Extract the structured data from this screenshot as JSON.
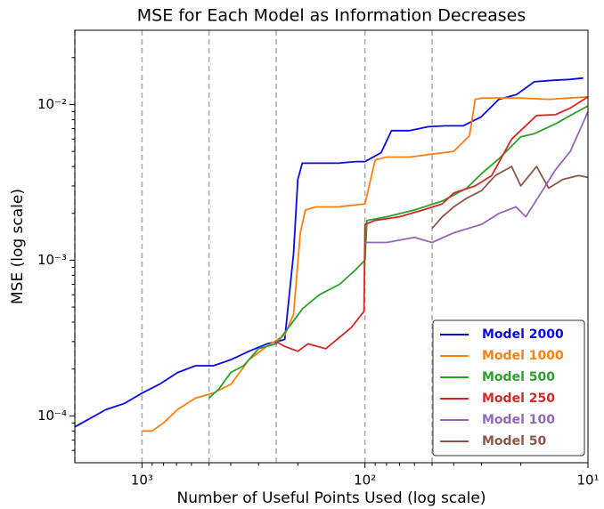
{
  "chart_data": {
    "type": "line",
    "title": "MSE for Each Model as Information Decreases",
    "xlabel": "Number of Useful Points Used (log scale)",
    "ylabel": "MSE (log scale)",
    "xscale": "log",
    "yscale": "log",
    "xlim": [
      2000,
      10
    ],
    "ylim": [
      5e-05,
      0.03
    ],
    "xticks": [
      {
        "value": 1000,
        "label": "10³"
      },
      {
        "value": 100,
        "label": "10²"
      },
      {
        "value": 10,
        "label": "10¹"
      }
    ],
    "yticks": [
      {
        "value": 0.0001,
        "label": "10⁻⁴"
      },
      {
        "value": 0.001,
        "label": "10⁻³"
      },
      {
        "value": 0.01,
        "label": "10⁻²"
      }
    ],
    "vlines": [
      2000,
      1000,
      500,
      250,
      100,
      50
    ],
    "legend": "lower right",
    "series": [
      {
        "name": "Model 2000",
        "color": "#0a0ae6",
        "x": [
          2000,
          1738,
          1445,
          1202,
          1000,
          832,
          692,
          575,
          479,
          398,
          331,
          275,
          247,
          229,
          209,
          200,
          191,
          174,
          158,
          132,
          110,
          100,
          84.7,
          76,
          63,
          52,
          43.7,
          36.3,
          30.2,
          25.1,
          20.9,
          17.4,
          14.5,
          12,
          10.5
        ],
        "values": [
          8.5e-05,
          9.5e-05,
          0.00011,
          0.00012,
          0.00014,
          0.00016,
          0.00019,
          0.00021,
          0.00021,
          0.00023,
          0.00026,
          0.00029,
          0.0003,
          0.00031,
          0.0011,
          0.0033,
          0.0042,
          0.0042,
          0.0042,
          0.0042,
          0.0043,
          0.0043,
          0.0049,
          0.0068,
          0.0068,
          0.0072,
          0.0073,
          0.0073,
          0.0083,
          0.0108,
          0.0116,
          0.014,
          0.0143,
          0.0145,
          0.0148
        ]
      },
      {
        "name": "Model 1000",
        "color": "#ff7f0e",
        "x": [
          1000,
          900,
          800,
          692,
          575,
          479,
          398,
          331,
          275,
          229,
          209,
          195,
          185,
          166,
          132,
          100,
          90,
          80,
          63,
          50,
          40,
          34,
          32,
          30,
          25,
          20,
          15,
          10
        ],
        "values": [
          8e-05,
          8e-05,
          9e-05,
          0.00011,
          0.00013,
          0.00014,
          0.00016,
          0.00023,
          0.00028,
          0.00033,
          0.00045,
          0.0015,
          0.0021,
          0.0022,
          0.0022,
          0.0023,
          0.0044,
          0.0046,
          0.0046,
          0.0048,
          0.005,
          0.0063,
          0.0108,
          0.011,
          0.011,
          0.011,
          0.0108,
          0.0112
        ]
      },
      {
        "name": "Model 500",
        "color": "#2ca02c",
        "x": [
          500,
          450,
          400,
          350,
          300,
          250,
          220,
          190,
          160,
          130,
          110,
          100,
          98,
          80,
          60,
          45,
          35,
          30,
          25,
          20,
          17.4,
          14,
          12,
          10
        ],
        "values": [
          0.00013,
          0.00015,
          0.00019,
          0.00021,
          0.00027,
          0.00029,
          0.00037,
          0.00049,
          0.0006,
          0.0007,
          0.00087,
          0.001,
          0.0018,
          0.0019,
          0.0021,
          0.0024,
          0.0029,
          0.0036,
          0.0045,
          0.0062,
          0.0065,
          0.0075,
          0.0085,
          0.0098
        ]
      },
      {
        "name": "Model 250",
        "color": "#d62728",
        "x": [
          250,
          230,
          200,
          180,
          150,
          130,
          115,
          101,
          100,
          90,
          70,
          55,
          45,
          40,
          32,
          27,
          22,
          17,
          14,
          12,
          10
        ],
        "values": [
          0.0003,
          0.00028,
          0.00026,
          0.00029,
          0.00027,
          0.00032,
          0.00037,
          0.00047,
          0.0017,
          0.0018,
          0.0019,
          0.0021,
          0.0023,
          0.0027,
          0.003,
          0.0035,
          0.006,
          0.0085,
          0.0086,
          0.0095,
          0.0112
        ]
      },
      {
        "name": "Model 100",
        "color": "#9467bd",
        "x": [
          100,
          80,
          60,
          50,
          40,
          30,
          25,
          21,
          19,
          16,
          14,
          12,
          10
        ],
        "values": [
          0.0013,
          0.0013,
          0.0014,
          0.0013,
          0.0015,
          0.0017,
          0.002,
          0.0022,
          0.0019,
          0.0028,
          0.0038,
          0.005,
          0.009
        ]
      },
      {
        "name": "Model 50",
        "color": "#8c564b",
        "x": [
          50,
          45,
          40,
          35,
          30,
          26,
          22,
          20,
          17,
          15,
          13,
          11,
          10
        ],
        "values": [
          0.0016,
          0.0019,
          0.0022,
          0.0025,
          0.0028,
          0.0035,
          0.004,
          0.003,
          0.004,
          0.0029,
          0.0033,
          0.0035,
          0.0034
        ]
      }
    ]
  }
}
